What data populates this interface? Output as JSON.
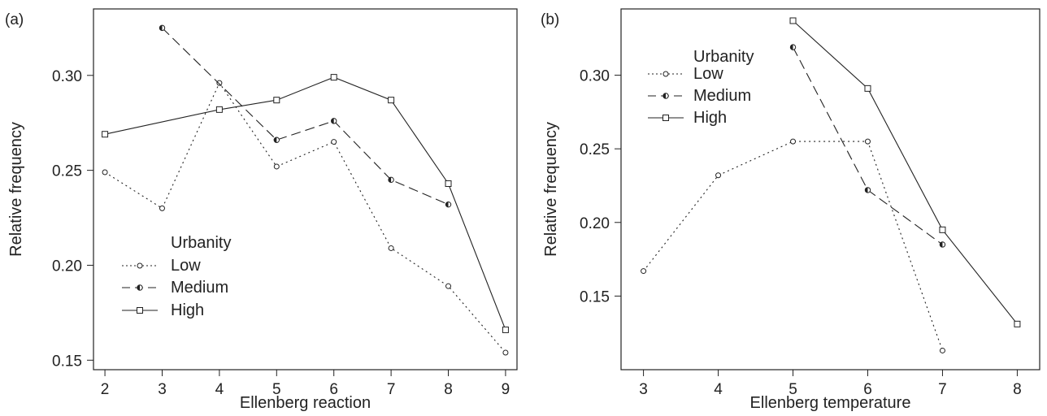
{
  "chart_data": [
    {
      "type": "line",
      "panel_label": "(a)",
      "xlabel": "Ellenberg reaction",
      "ylabel": "Relative frequency",
      "xlim": [
        1.8,
        9.2
      ],
      "ylim": [
        0.145,
        0.335
      ],
      "xticks": [
        2,
        3,
        4,
        5,
        6,
        7,
        8,
        9
      ],
      "yticks": [
        0.15,
        0.2,
        0.25,
        0.3
      ],
      "ytick_labels": [
        "0.15",
        "0.20",
        "0.25",
        "0.30"
      ],
      "legend": {
        "title": "Urbanity",
        "placement": "bottom-left"
      },
      "series": [
        {
          "name": "Low",
          "linestyle": "dotted",
          "marker": "circle",
          "points": [
            [
              2,
              0.249
            ],
            [
              3,
              0.23
            ],
            [
              4,
              0.296
            ],
            [
              5,
              0.252
            ],
            [
              6,
              0.265
            ],
            [
              7,
              0.209
            ],
            [
              8,
              0.189
            ],
            [
              9,
              0.154
            ]
          ]
        },
        {
          "name": "Medium",
          "linestyle": "dashed",
          "marker": "half-circle",
          "points": [
            [
              3,
              0.325
            ],
            [
              5,
              0.266
            ],
            [
              6,
              0.276
            ],
            [
              7,
              0.245
            ],
            [
              8,
              0.232
            ]
          ]
        },
        {
          "name": "High",
          "linestyle": "solid",
          "marker": "square",
          "points": [
            [
              2,
              0.269
            ],
            [
              4,
              0.282
            ],
            [
              5,
              0.287
            ],
            [
              6,
              0.299
            ],
            [
              7,
              0.287
            ],
            [
              8,
              0.243
            ],
            [
              9,
              0.166
            ]
          ]
        }
      ]
    },
    {
      "type": "line",
      "panel_label": "(b)",
      "xlabel": "Ellenberg temperature",
      "ylabel": "Relative frequency",
      "xlim": [
        2.7,
        8.3
      ],
      "ylim": [
        0.1,
        0.345
      ],
      "xticks": [
        3,
        4,
        5,
        6,
        7,
        8
      ],
      "yticks": [
        0.15,
        0.2,
        0.25,
        0.3
      ],
      "ytick_labels": [
        "0.15",
        "0.20",
        "0.25",
        "0.30"
      ],
      "legend": {
        "title": "Urbanity",
        "placement": "top-left"
      },
      "series": [
        {
          "name": "Low",
          "linestyle": "dotted",
          "marker": "circle",
          "points": [
            [
              3,
              0.167
            ],
            [
              4,
              0.232
            ],
            [
              5,
              0.255
            ],
            [
              6,
              0.255
            ],
            [
              7,
              0.113
            ]
          ]
        },
        {
          "name": "Medium",
          "linestyle": "dashed",
          "marker": "half-circle",
          "points": [
            [
              5,
              0.319
            ],
            [
              6,
              0.222
            ],
            [
              7,
              0.185
            ]
          ]
        },
        {
          "name": "High",
          "linestyle": "solid",
          "marker": "square",
          "points": [
            [
              5,
              0.337
            ],
            [
              6,
              0.291
            ],
            [
              7,
              0.195
            ],
            [
              8,
              0.131
            ]
          ]
        }
      ]
    }
  ],
  "colors": {
    "ink": "#222222",
    "background": "#ffffff"
  }
}
